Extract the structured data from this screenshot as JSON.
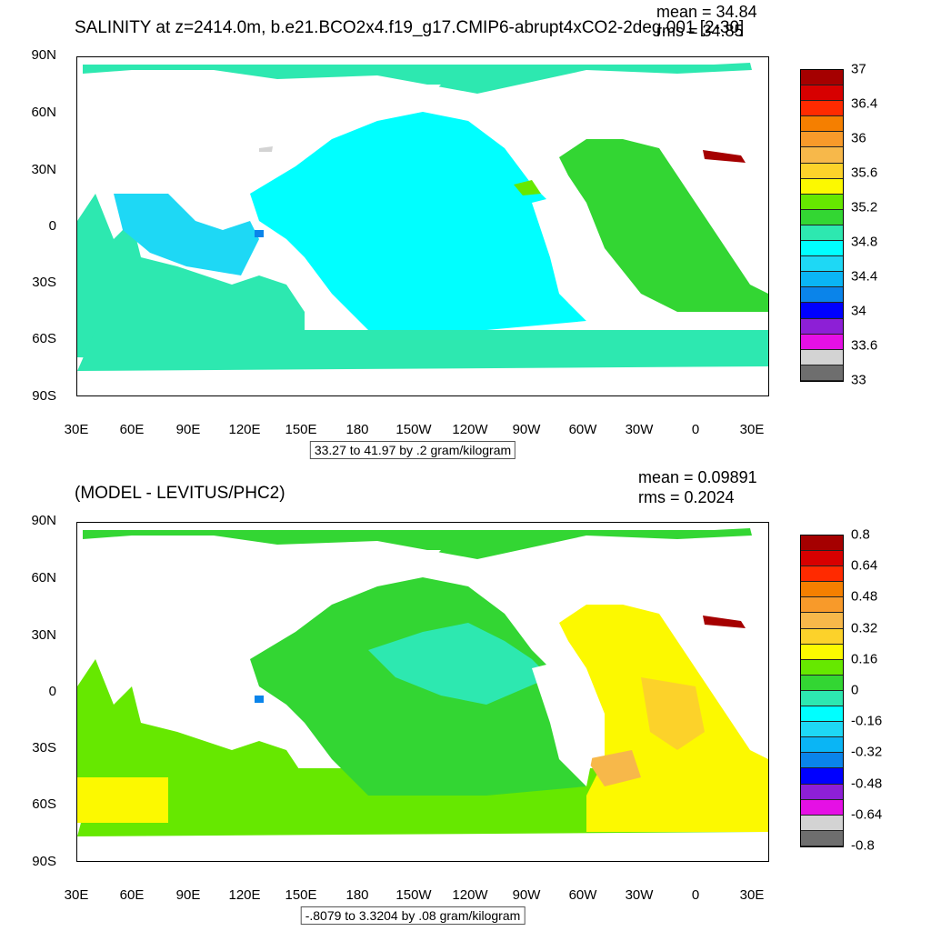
{
  "panels": [
    {
      "title": "SALINITY at z=2414.0m, b.e21.BCO2x4.f19_g17.CMIP6-abrupt4xCO2-2deg.001 [2-30]",
      "mean_text": "mean = 34.84",
      "rms_text": "rms = 34.85",
      "range_text": "33.27 to 41.97 by .2 gram/kilogram",
      "lat_labels": [
        "90N",
        "60N",
        "30N",
        "0",
        "30S",
        "60S",
        "90S"
      ],
      "lon_labels": [
        "30E",
        "60E",
        "90E",
        "120E",
        "150E",
        "180",
        "150W",
        "120W",
        "90W",
        "60W",
        "30W",
        "0",
        "30E"
      ],
      "colorbar": {
        "labels": [
          "37",
          "36.4",
          "36",
          "35.6",
          "35.2",
          "34.8",
          "34.4",
          "34",
          "33.6",
          "33"
        ],
        "colors": [
          "#a50000",
          "#d70000",
          "#ff2a00",
          "#f57f00",
          "#f89a2a",
          "#f7b84a",
          "#fcd22a",
          "#fcf900",
          "#66e800",
          "#33d633",
          "#2de8b0",
          "#00ffff",
          "#1ed8f5",
          "#0ab5f5",
          "#0a84ea",
          "#0000ff",
          "#8d1fd6",
          "#e510e5",
          "#d3d3d3",
          "#6e6e6e"
        ]
      }
    },
    {
      "title": "(MODEL - LEVITUS/PHC2)",
      "mean_text": "mean = 0.09891",
      "rms_text": "rms = 0.2024",
      "range_text": "-.8079 to 3.3204 by .08 gram/kilogram",
      "lat_labels": [
        "90N",
        "60N",
        "30N",
        "0",
        "30S",
        "60S",
        "90S"
      ],
      "lon_labels": [
        "30E",
        "60E",
        "90E",
        "120E",
        "150E",
        "180",
        "150W",
        "120W",
        "90W",
        "60W",
        "30W",
        "0",
        "30E"
      ],
      "colorbar": {
        "labels": [
          "0.8",
          "0.64",
          "0.48",
          "0.32",
          "0.16",
          "0",
          "-0.16",
          "-0.32",
          "-0.48",
          "-0.64",
          "-0.8"
        ],
        "colors": [
          "#a50000",
          "#d70000",
          "#ff2a00",
          "#f57f00",
          "#f89a2a",
          "#f7b84a",
          "#fcd22a",
          "#fcf900",
          "#66e800",
          "#33d633",
          "#2de8b0",
          "#00ffff",
          "#1ed8f5",
          "#0ab5f5",
          "#0a84ea",
          "#0000ff",
          "#8d1fd6",
          "#e510e5",
          "#d3d3d3",
          "#6e6e6e"
        ]
      }
    }
  ]
}
